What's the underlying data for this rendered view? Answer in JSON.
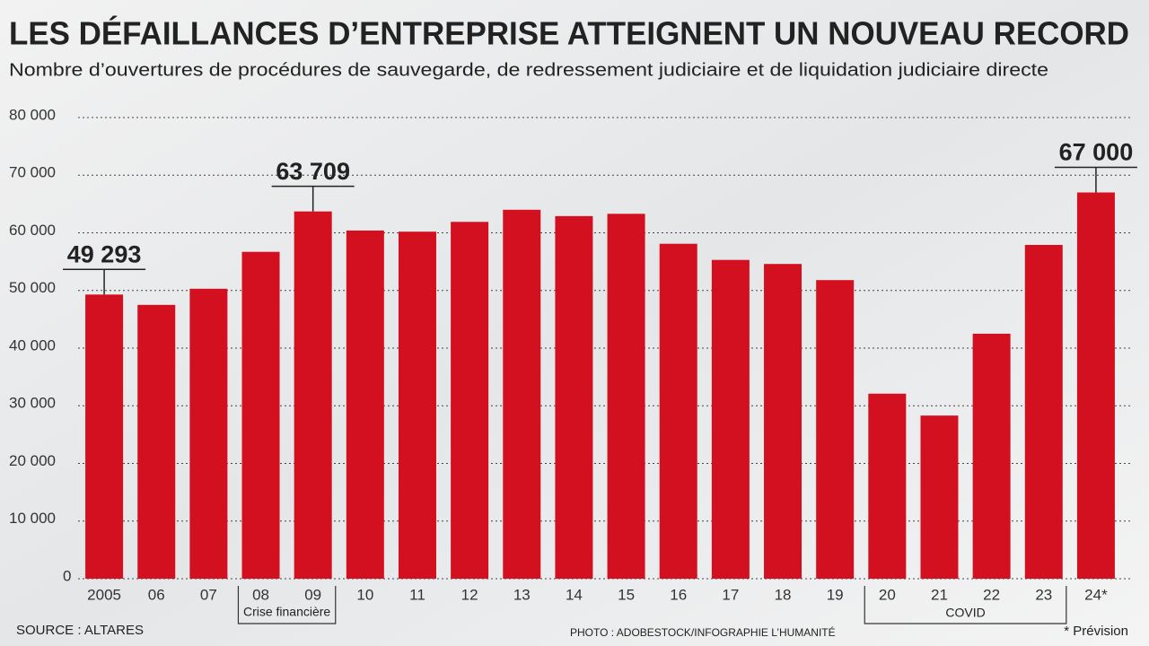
{
  "chart_data": {
    "type": "bar",
    "title": "LES DÉFAILLANCES D’ENTREPRISE ATTEIGNENT UN NOUVEAU RECORD",
    "subtitle": "Nombre d’ouvertures de procédures de sauvegarde, de redressement judiciaire et de liquidation judiciaire directe",
    "categories": [
      "2005",
      "06",
      "07",
      "08",
      "09",
      "10",
      "11",
      "12",
      "13",
      "14",
      "15",
      "16",
      "17",
      "18",
      "19",
      "20",
      "21",
      "22",
      "23",
      "24*"
    ],
    "values": [
      49293,
      47500,
      50300,
      56700,
      63709,
      60400,
      60200,
      61900,
      64000,
      62900,
      63300,
      58100,
      55300,
      54600,
      51800,
      32100,
      28300,
      42500,
      57900,
      67000
    ],
    "value_labels": [
      "49 293",
      null,
      null,
      null,
      "63 709",
      null,
      null,
      null,
      null,
      null,
      null,
      null,
      null,
      null,
      null,
      null,
      null,
      null,
      null,
      "67 000"
    ],
    "color": "#d3101f",
    "ylim": [
      0,
      80000
    ],
    "yticks": [
      0,
      {
        "value": 10000,
        "label": "10 000"
      },
      {
        "value": 20000,
        "label": "20 000"
      },
      {
        "value": 30000,
        "label": "30 000"
      },
      {
        "value": 40000,
        "label": "40 000"
      },
      {
        "value": 50000,
        "label": "50 000"
      },
      {
        "value": 60000,
        "label": "60 000"
      },
      {
        "value": 70000,
        "label": "70 000"
      },
      {
        "value": 80000,
        "label": "80 000"
      }
    ],
    "grid": true,
    "annotations": [
      "Crise financière",
      "COVID"
    ],
    "footnote": "* Prévision",
    "source": "SOURCE : ALTARES",
    "credit": "PHOTO : ADOBESTOCK/INFOGRAPHIE L’HUMANITÉ"
  }
}
